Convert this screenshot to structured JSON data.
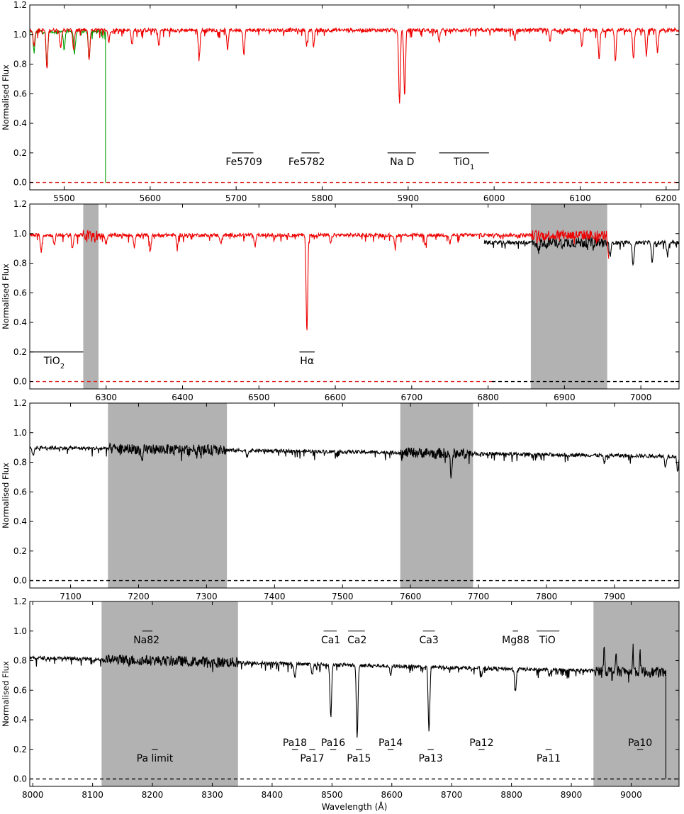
{
  "chart_data": [
    {
      "type": "line",
      "xlim": [
        5460,
        6215
      ],
      "ylim": [
        -0.05,
        1.2
      ],
      "xticks": [
        5500,
        5600,
        5700,
        5800,
        5900,
        6000,
        6100,
        6200
      ],
      "yticks": [
        0.0,
        0.2,
        0.4,
        0.6,
        0.8,
        1.0,
        1.2
      ],
      "xlabel": "",
      "ylabel": "Normalised Flux",
      "grid": false,
      "dashed_lines": [
        {
          "y": 0.0,
          "color": "#dd2222"
        }
      ],
      "shaded_regions": [],
      "series": [
        {
          "color": "#00a000",
          "x_range": [
            5460,
            5548
          ],
          "base": 1.02,
          "lines": [
            [
              5465,
              0.88
            ],
            [
              5480,
              0.78
            ],
            [
              5500,
              0.9
            ],
            [
              5512,
              0.87
            ],
            [
              5529,
              0.84
            ]
          ],
          "drop": [
            5548,
            0.0
          ]
        },
        {
          "color": "#ee0000",
          "x_range": [
            5460,
            6215
          ],
          "base": 1.03,
          "lines": [
            [
              5465,
              0.93
            ],
            [
              5480,
              0.76
            ],
            [
              5496,
              0.92
            ],
            [
              5511,
              0.9
            ],
            [
              5529,
              0.83
            ],
            [
              5552,
              0.95
            ],
            [
              5579,
              0.93
            ],
            [
              5610,
              0.93
            ],
            [
              5657,
              0.84
            ],
            [
              5690,
              0.9
            ],
            [
              5709,
              0.87
            ],
            [
              5782,
              0.93
            ],
            [
              5790,
              0.92
            ],
            [
              5889.95,
              0.53
            ],
            [
              5895.92,
              0.58
            ],
            [
              5936,
              0.95
            ],
            [
              6024,
              0.96
            ],
            [
              6065,
              0.95
            ],
            [
              6102,
              0.92
            ],
            [
              6122,
              0.84
            ],
            [
              6141,
              0.82
            ],
            [
              6162,
              0.83
            ],
            [
              6177,
              0.86
            ],
            [
              6190,
              0.88
            ]
          ]
        }
      ],
      "annotations": [
        {
          "text": "Fe5709",
          "x": 5709,
          "bar": [
            5695,
            5720
          ],
          "bar_y": 0.2
        },
        {
          "text": "Fe5782",
          "x": 5782,
          "bar": [
            5776,
            5797
          ],
          "bar_y": 0.2
        },
        {
          "text": "Na D",
          "x": 5893,
          "bar": [
            5876,
            5909
          ],
          "bar_y": 0.2
        },
        {
          "text": "TiO",
          "sub": "1",
          "x": 5965,
          "bar": [
            5936,
            5994
          ],
          "bar_y": 0.2
        }
      ]
    },
    {
      "type": "line",
      "xlim": [
        6200,
        7050
      ],
      "ylim": [
        -0.05,
        1.2
      ],
      "xticks": [
        6300,
        6400,
        6500,
        6600,
        6700,
        6800,
        6900,
        7000
      ],
      "yticks": [
        0.0,
        0.2,
        0.4,
        0.6,
        0.8,
        1.0,
        1.2
      ],
      "xlabel": "",
      "ylabel": "Normalised Flux",
      "grid": false,
      "dashed_lines": [
        {
          "y": 0.0,
          "color": "#dd2222",
          "x_to": 6805
        },
        {
          "y": 0.0,
          "color": "#000000",
          "x_from": 6805
        }
      ],
      "shaded_regions": [
        [
          6270,
          6290
        ],
        [
          6856,
          6956
        ]
      ],
      "series": [
        {
          "color": "#000000",
          "x_range": [
            6795,
            7050
          ],
          "base": 0.94,
          "lines": [
            [
              6866,
              0.87
            ],
            [
              6960,
              0.85
            ],
            [
              6990,
              0.78
            ],
            [
              7015,
              0.8
            ],
            [
              7035,
              0.85
            ]
          ]
        },
        {
          "color": "#ee0000",
          "x_range": [
            6200,
            6958
          ],
          "base": 0.99,
          "lines": [
            [
              6215,
              0.88
            ],
            [
              6232,
              0.92
            ],
            [
              6256,
              0.9
            ],
            [
              6300,
              0.93
            ],
            [
              6337,
              0.91
            ],
            [
              6358,
              0.89
            ],
            [
              6393,
              0.91
            ],
            [
              6450,
              0.93
            ],
            [
              6495,
              0.91
            ],
            [
              6562.8,
              0.34
            ],
            [
              6594,
              0.93
            ],
            [
              6678,
              0.92
            ],
            [
              6718,
              0.92
            ],
            [
              6750,
              0.93
            ],
            [
              6958,
              0.84
            ]
          ]
        }
      ],
      "annotations": [
        {
          "text": "TiO",
          "sub": "2",
          "x": 6232,
          "bar": [
            6200,
            6270
          ],
          "bar_y": 0.2
        },
        {
          "text": "Hα",
          "x": 6563,
          "bar": [
            6553,
            6573
          ],
          "bar_y": 0.2
        }
      ]
    },
    {
      "type": "line",
      "xlim": [
        7040,
        7995
      ],
      "ylim": [
        -0.05,
        1.2
      ],
      "xticks": [
        7100,
        7200,
        7300,
        7400,
        7500,
        7600,
        7700,
        7800,
        7900
      ],
      "yticks": [
        0.0,
        0.2,
        0.4,
        0.6,
        0.8,
        1.0,
        1.2
      ],
      "xlabel": "",
      "ylabel": "Normalised Flux",
      "grid": false,
      "dashed_lines": [
        {
          "y": 0.0,
          "color": "#000000"
        }
      ],
      "shaded_regions": [
        [
          7155,
          7330
        ],
        [
          7585,
          7692
        ]
      ],
      "series": [
        {
          "color": "#000000",
          "x_range": [
            7040,
            7995
          ],
          "base": 0.9,
          "slope_end": 0.84,
          "lines": [
            [
              7045,
              0.84
            ],
            [
              7205,
              0.78
            ],
            [
              7360,
              0.84
            ],
            [
              7590,
              0.85
            ],
            [
              7660,
              0.69
            ],
            [
              7885,
              0.79
            ],
            [
              7975,
              0.77
            ],
            [
              7993,
              0.74
            ]
          ]
        }
      ],
      "annotations": []
    },
    {
      "type": "line",
      "xlim": [
        7995,
        9080
      ],
      "ylim": [
        -0.05,
        1.2
      ],
      "xticks": [
        8000,
        8100,
        8200,
        8300,
        8400,
        8500,
        8600,
        8700,
        8800,
        8900,
        9000
      ],
      "yticks": [
        0.0,
        0.2,
        0.4,
        0.6,
        0.8,
        1.0,
        1.2
      ],
      "xlabel": "Wavelength (Å)",
      "ylabel": "Normalised Flux",
      "grid": false,
      "dashed_lines": [
        {
          "y": 0.0,
          "color": "#000000"
        }
      ],
      "shaded_regions": [
        [
          8115,
          8343
        ],
        [
          8937,
          9080
        ]
      ],
      "series": [
        {
          "color": "#000000",
          "x_range": [
            7995,
            9058
          ],
          "base": 0.82,
          "slope_end": 0.72,
          "lines": [
            [
              8438,
              0.68
            ],
            [
              8467,
              0.7
            ],
            [
              8498.02,
              0.42
            ],
            [
              8542.09,
              0.29
            ],
            [
              8598,
              0.7
            ],
            [
              8662.14,
              0.32
            ],
            [
              8750,
              0.7
            ],
            [
              8806.8,
              0.6
            ],
            [
              8863,
              0.7
            ]
          ],
          "spikes": [
            [
              8955,
              0.93
            ],
            [
              8975,
              0.86
            ],
            [
              9003,
              0.91
            ],
            [
              9015,
              0.85
            ]
          ],
          "drop": [
            9058,
            0.0
          ]
        }
      ],
      "annotations": [
        {
          "text": "Na82",
          "x": 8190,
          "bar": [
            8183,
            8200
          ],
          "bar_y": 1.0
        },
        {
          "text": "Ca1",
          "x": 8498,
          "bar": [
            8486,
            8508
          ],
          "bar_y": 1.0
        },
        {
          "text": "Ca2",
          "x": 8542,
          "bar": [
            8527,
            8555
          ],
          "bar_y": 1.0
        },
        {
          "text": "Ca3",
          "x": 8662,
          "bar": [
            8652,
            8672
          ],
          "bar_y": 1.0
        },
        {
          "text": "Mg88",
          "x": 8807,
          "bar": [
            8802,
            8811
          ],
          "bar_y": 1.0
        },
        {
          "text": "TiO",
          "x": 8860,
          "bar": [
            8842,
            8880
          ],
          "bar_y": 1.0
        },
        {
          "text": "Pa18",
          "x": 8438,
          "bar": [
            8433,
            8443
          ],
          "bar_y": 0.2,
          "label_above": true
        },
        {
          "text": "Pa17",
          "x": 8467,
          "bar": [
            8462,
            8472
          ],
          "bar_y": 0.2
        },
        {
          "text": "Pa16",
          "x": 8502,
          "bar": [
            8497,
            8507
          ],
          "bar_y": 0.2,
          "label_above": true
        },
        {
          "text": "Pa15",
          "x": 8545,
          "bar": [
            8540,
            8550
          ],
          "bar_y": 0.2
        },
        {
          "text": "Pa14",
          "x": 8598,
          "bar": [
            8593,
            8603
          ],
          "bar_y": 0.2,
          "label_above": true
        },
        {
          "text": "Pa13",
          "x": 8665,
          "bar": [
            8660,
            8670
          ],
          "bar_y": 0.2
        },
        {
          "text": "Pa12",
          "x": 8750,
          "bar": [
            8745,
            8755
          ],
          "bar_y": 0.2,
          "label_above": true
        },
        {
          "text": "Pa11",
          "x": 8862,
          "bar": [
            8857,
            8867
          ],
          "bar_y": 0.2
        },
        {
          "text": "Pa10",
          "x": 9015,
          "bar": [
            9010,
            9020
          ],
          "bar_y": 0.2,
          "label_above": true
        },
        {
          "text": "Pa limit",
          "x": 8204,
          "bar": [
            8199,
            8209
          ],
          "bar_y": 0.2
        }
      ]
    }
  ]
}
